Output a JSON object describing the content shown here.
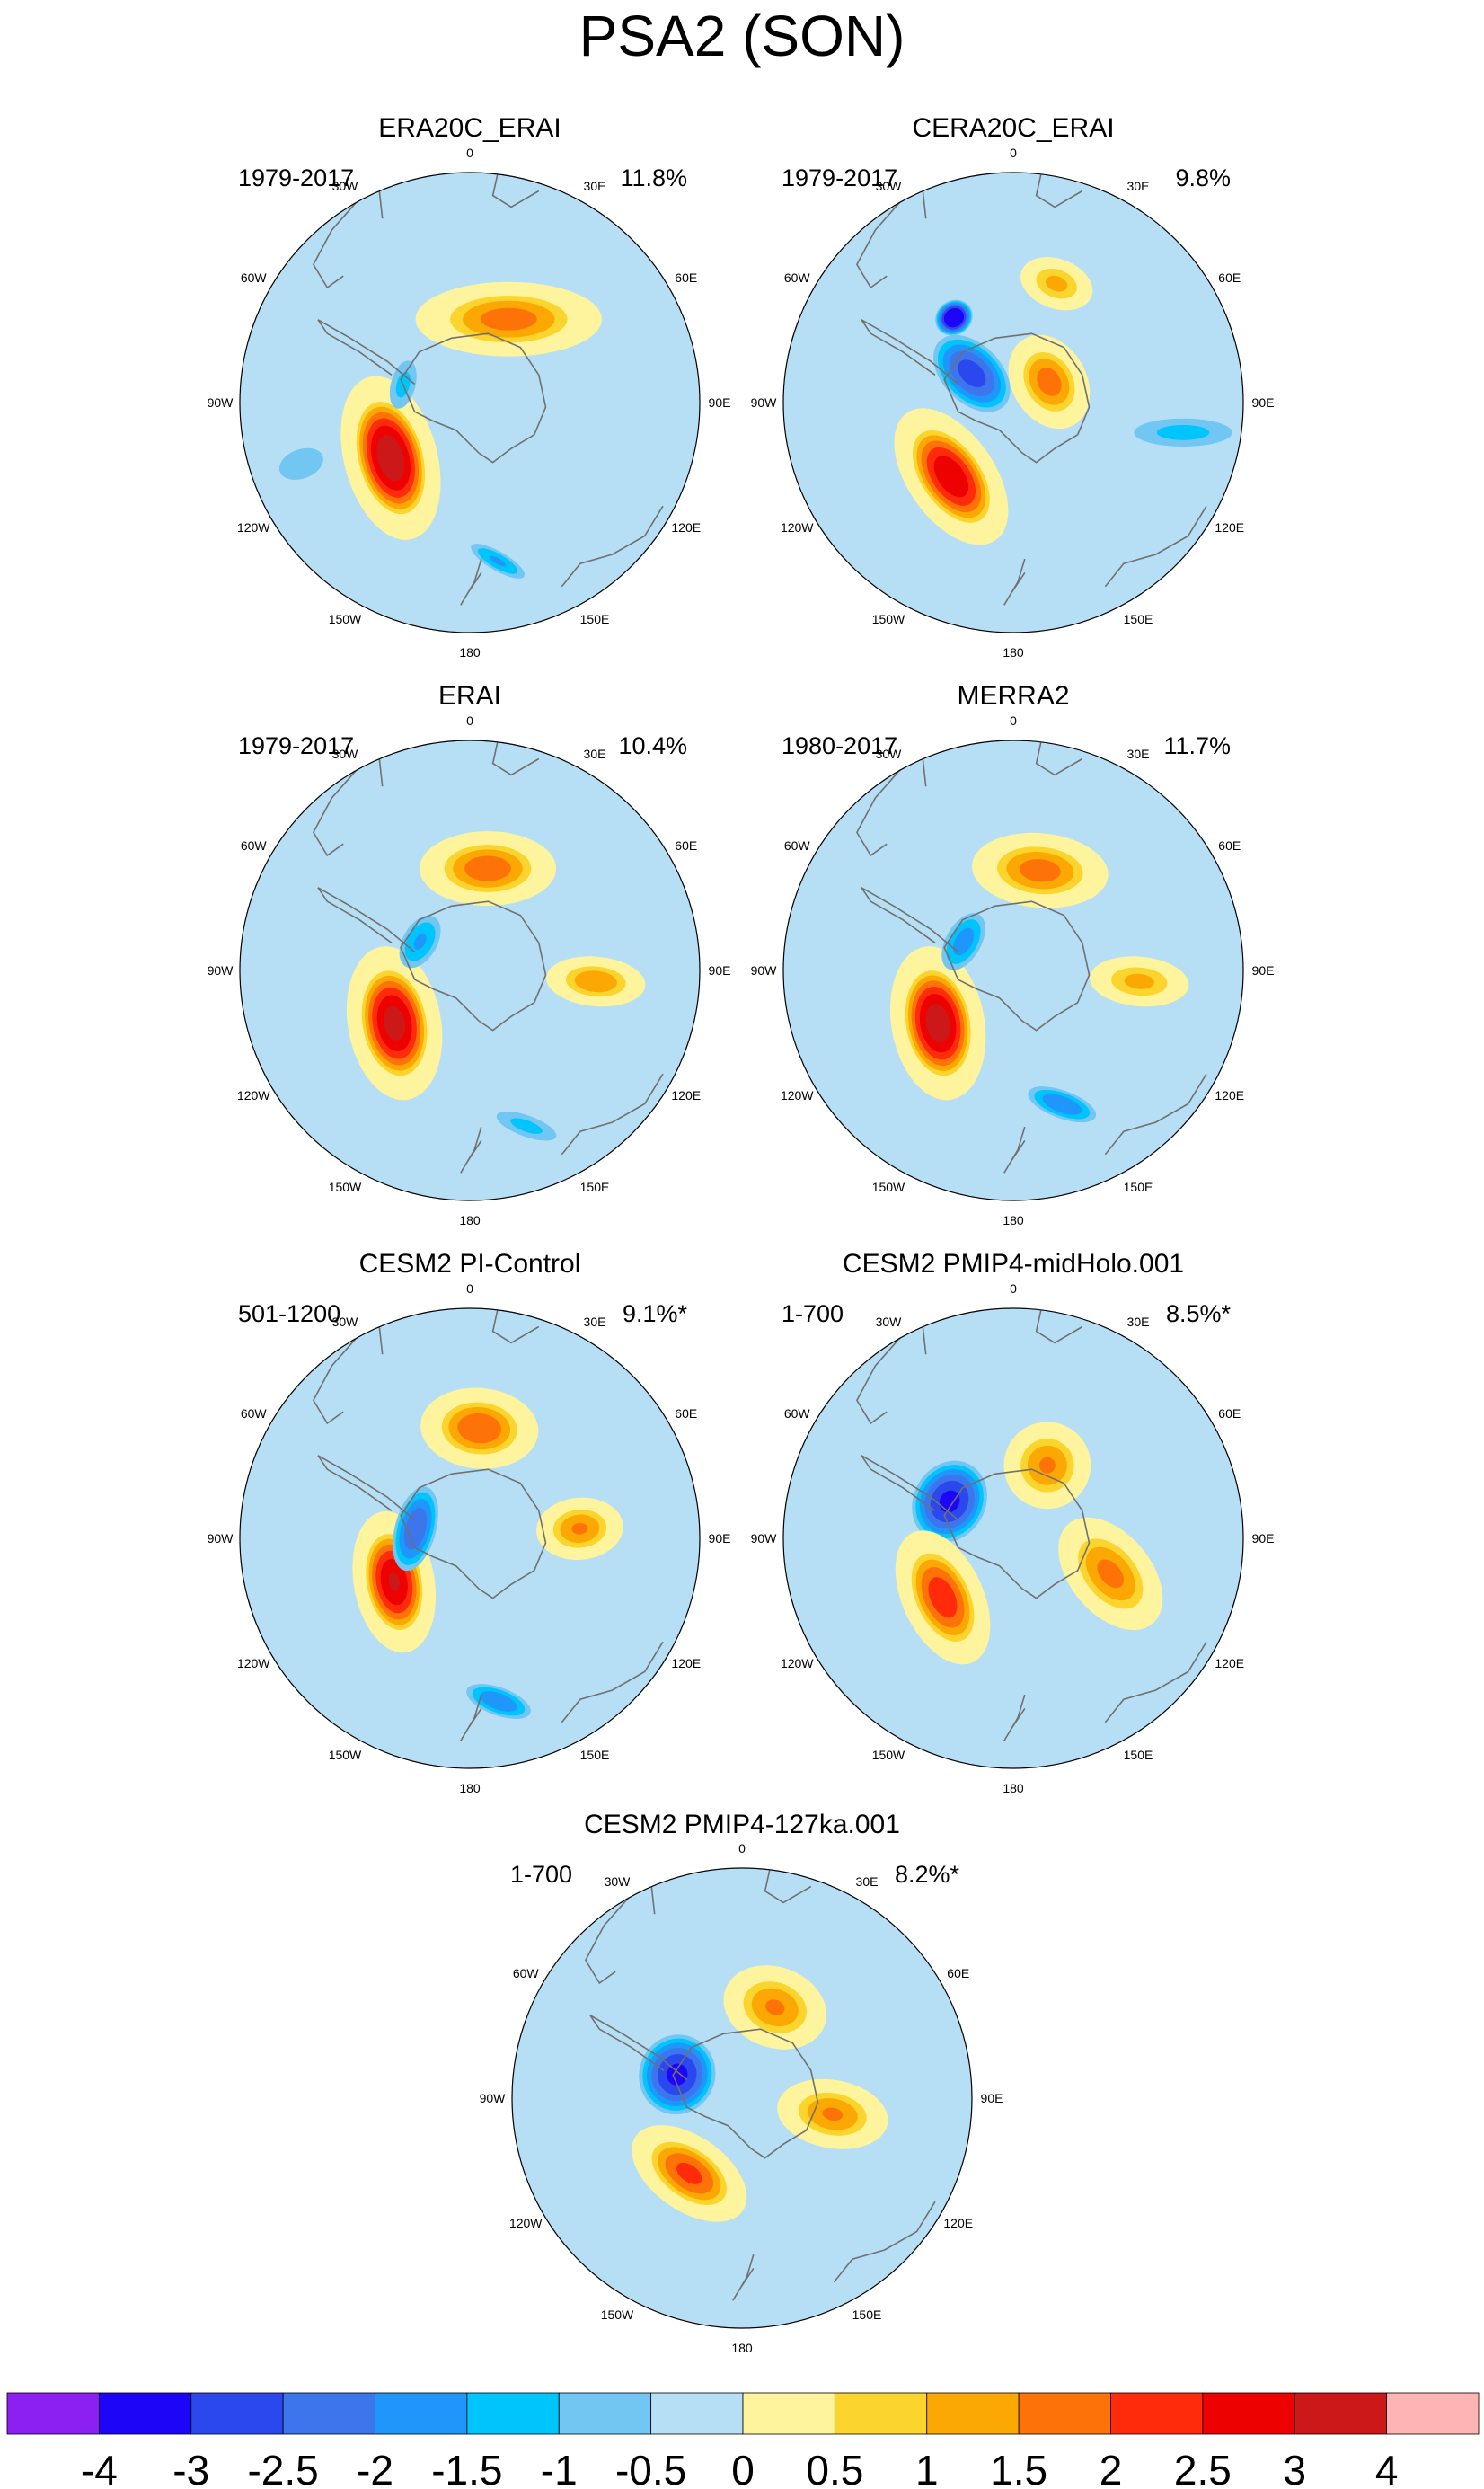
{
  "title": "PSA2 (SON)",
  "chart_data": {
    "type": "heatmap",
    "projection": "south polar stereographic",
    "title": "PSA2 (SON)",
    "longitude_labels": [
      "0",
      "30E",
      "60E",
      "90E",
      "120E",
      "150E",
      "180",
      "150W",
      "120W",
      "90W",
      "60W",
      "30W"
    ],
    "panels": [
      {
        "name": "ERA20C_ERAI",
        "period": "1979-2017",
        "variance_explained": "11.8%",
        "anomalies": [
          {
            "lon": -125,
            "r": 0.42,
            "value": 3.5,
            "sx": 0.27,
            "sy": 0.15,
            "rot": 20
          },
          {
            "lon": 25,
            "r": 0.4,
            "value": 1.8,
            "sx": 0.3,
            "sy": 0.12,
            "rot": -25
          },
          {
            "lon": -75,
            "r": 0.3,
            "value": -1.2,
            "sx": 0.14,
            "sy": 0.07,
            "rot": 0
          },
          {
            "lon": 170,
            "r": 0.7,
            "value": -1.6,
            "sx": 0.16,
            "sy": 0.05,
            "rot": 40
          },
          {
            "lon": -110,
            "r": 0.78,
            "value": -1.0,
            "sx": 0.09,
            "sy": 0.14,
            "rot": 0
          }
        ]
      },
      {
        "name": "CERA20C_ERAI",
        "period": "1979-2017",
        "variance_explained": "9.8%",
        "anomalies": [
          {
            "lon": -140,
            "r": 0.42,
            "value": 3.0,
            "sx": 0.25,
            "sy": 0.14,
            "rot": 15
          },
          {
            "lon": -55,
            "r": 0.22,
            "value": -2.8,
            "sx": 0.14,
            "sy": 0.22,
            "rot": 10
          },
          {
            "lon": -35,
            "r": 0.45,
            "value": -4.0,
            "sx": 0.09,
            "sy": 0.08,
            "rot": 0
          },
          {
            "lon": 60,
            "r": 0.18,
            "value": 1.8,
            "sx": 0.16,
            "sy": 0.12,
            "rot": 0
          },
          {
            "lon": 20,
            "r": 0.55,
            "value": 1.2,
            "sx": 0.12,
            "sy": 0.08,
            "rot": 0
          },
          {
            "lon": 100,
            "r": 0.75,
            "value": -1.2,
            "sx": 0.28,
            "sy": 0.08,
            "rot": 80
          }
        ]
      },
      {
        "name": "ERAI",
        "period": "1979-2017",
        "variance_explained": "10.4%",
        "anomalies": [
          {
            "lon": -125,
            "r": 0.4,
            "value": 3.3,
            "sx": 0.25,
            "sy": 0.15,
            "rot": 25
          },
          {
            "lon": 10,
            "r": 0.45,
            "value": 1.9,
            "sx": 0.22,
            "sy": 0.12,
            "rot": -10
          },
          {
            "lon": -60,
            "r": 0.25,
            "value": -1.6,
            "sx": 0.15,
            "sy": 0.09,
            "rot": 0
          },
          {
            "lon": 95,
            "r": 0.55,
            "value": 1.5,
            "sx": 0.08,
            "sy": 0.16,
            "rot": 0
          },
          {
            "lon": 160,
            "r": 0.72,
            "value": -1.2,
            "sx": 0.18,
            "sy": 0.06,
            "rot": 40
          }
        ]
      },
      {
        "name": "MERRA2",
        "period": "1980-2017",
        "variance_explained": "11.7%",
        "anomalies": [
          {
            "lon": -125,
            "r": 0.4,
            "value": 3.4,
            "sx": 0.25,
            "sy": 0.15,
            "rot": 25
          },
          {
            "lon": 15,
            "r": 0.45,
            "value": 1.8,
            "sx": 0.22,
            "sy": 0.12,
            "rot": -10
          },
          {
            "lon": -60,
            "r": 0.25,
            "value": -1.8,
            "sx": 0.16,
            "sy": 0.09,
            "rot": 0
          },
          {
            "lon": 95,
            "r": 0.55,
            "value": 1.2,
            "sx": 0.08,
            "sy": 0.16,
            "rot": 0
          },
          {
            "lon": 160,
            "r": 0.62,
            "value": -2.0,
            "sx": 0.18,
            "sy": 0.07,
            "rot": 40
          }
        ]
      },
      {
        "name": "CESM2 PI-Control",
        "period": "501-1200",
        "variance_explained": "9.1%*",
        "anomalies": [
          {
            "lon": -120,
            "r": 0.38,
            "value": 3.1,
            "sx": 0.23,
            "sy": 0.13,
            "rot": 20
          },
          {
            "lon": 5,
            "r": 0.48,
            "value": 2.0,
            "sx": 0.19,
            "sy": 0.13,
            "rot": 0
          },
          {
            "lon": -80,
            "r": 0.24,
            "value": -2.5,
            "sx": 0.21,
            "sy": 0.1,
            "rot": 5
          },
          {
            "lon": 85,
            "r": 0.48,
            "value": 1.6,
            "sx": 0.1,
            "sy": 0.14,
            "rot": 0
          },
          {
            "lon": 170,
            "r": 0.72,
            "value": -2.0,
            "sx": 0.17,
            "sy": 0.07,
            "rot": 30
          }
        ]
      },
      {
        "name": "CESM2 PMIP4-midHolo.001",
        "period": "1-700",
        "variance_explained": "8.5%*",
        "anomalies": [
          {
            "lon": -60,
            "r": 0.32,
            "value": -3.2,
            "sx": 0.2,
            "sy": 0.17,
            "rot": 0
          },
          {
            "lon": -130,
            "r": 0.4,
            "value": 2.4,
            "sx": 0.23,
            "sy": 0.13,
            "rot": 15
          },
          {
            "lon": 25,
            "r": 0.35,
            "value": 1.6,
            "sx": 0.14,
            "sy": 0.14,
            "rot": 0
          },
          {
            "lon": 110,
            "r": 0.45,
            "value": 1.7,
            "sx": 0.13,
            "sy": 0.21,
            "rot": 30
          }
        ]
      },
      {
        "name": "CESM2 PMIP4-127ka.001",
        "period": "1-700",
        "variance_explained": "8.2%*",
        "anomalies": [
          {
            "lon": -70,
            "r": 0.3,
            "value": -3.2,
            "sx": 0.19,
            "sy": 0.18,
            "rot": 0
          },
          {
            "lon": -145,
            "r": 0.4,
            "value": 2.2,
            "sx": 0.21,
            "sy": 0.12,
            "rot": 0
          },
          {
            "lon": 20,
            "r": 0.42,
            "value": 1.6,
            "sx": 0.17,
            "sy": 0.13,
            "rot": 0
          },
          {
            "lon": 100,
            "r": 0.4,
            "value": 1.6,
            "sx": 0.11,
            "sy": 0.18,
            "rot": 0
          }
        ]
      }
    ],
    "colorbar": {
      "levels": [
        -4,
        -3,
        -2.5,
        -2,
        -1.5,
        -1,
        -0.5,
        0,
        0.5,
        1,
        1.5,
        2,
        2.5,
        3,
        4
      ],
      "labels": [
        "-4",
        "-3",
        "-2.5",
        "-2",
        "-1.5",
        "-1",
        "-0.5",
        "0",
        "0.5",
        "1",
        "1.5",
        "2",
        "2.5",
        "3",
        "4"
      ],
      "colors": [
        "#8c1ff2",
        "#1d05f8",
        "#2b48ee",
        "#3d75ed",
        "#1e96fa",
        "#00c4fc",
        "#71c6f2",
        "#b6dff5",
        "#fef49d",
        "#fbd42d",
        "#fca804",
        "#fe7307",
        "#ff2b0b",
        "#ed0101",
        "#cc1818",
        "#feb4b5"
      ],
      "orientation": "horizontal",
      "placement": "bottom"
    },
    "land_outline_color": "#707070",
    "outline_color": "#000000"
  }
}
